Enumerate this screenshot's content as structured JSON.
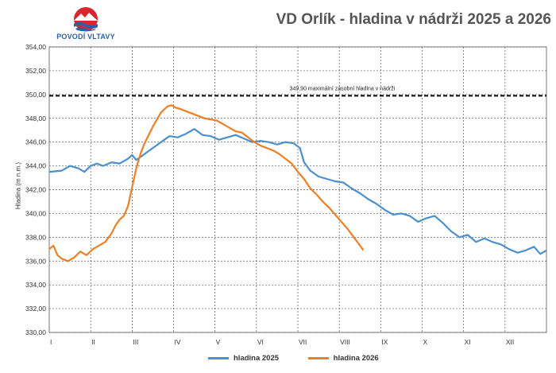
{
  "header": {
    "logo_text": "POVODÍ VLTAVY",
    "title": "VD Orlík - hladina v nádrži 2025 a 2026"
  },
  "chart_data": {
    "type": "line",
    "title": "VD Orlík - hladina v nádrži 2025 a 2026",
    "ylabel": "Hladina (m n.m.)",
    "xlabel": "",
    "ylim": [
      330,
      354
    ],
    "xlim": [
      0,
      12
    ],
    "y_ticks": [
      "330,00",
      "332,00",
      "334,00",
      "336,00",
      "338,00",
      "340,00",
      "342,00",
      "344,00",
      "346,00",
      "348,00",
      "350,00",
      "352,00",
      "354,00"
    ],
    "x_ticks": [
      "I",
      "II",
      "III",
      "IV",
      "V",
      "VI",
      "VII",
      "VIII",
      "IX",
      "X",
      "XI",
      "XII"
    ],
    "grid": true,
    "legend_position": "bottom",
    "reference_line": {
      "y": 349.9,
      "label": "349,90 maximální zásobní hladina v nádrži",
      "color": "#000000"
    },
    "series": [
      {
        "name": "hladina 2025",
        "color": "#4a90cf",
        "points": [
          [
            0,
            343.5
          ],
          [
            0.3,
            343.6
          ],
          [
            0.5,
            344.0
          ],
          [
            0.7,
            343.8
          ],
          [
            0.85,
            343.5
          ],
          [
            1.0,
            344.0
          ],
          [
            1.15,
            344.2
          ],
          [
            1.3,
            344.0
          ],
          [
            1.5,
            344.3
          ],
          [
            1.7,
            344.2
          ],
          [
            1.9,
            344.6
          ],
          [
            2.0,
            344.9
          ],
          [
            2.1,
            344.5
          ],
          [
            2.3,
            345.0
          ],
          [
            2.5,
            345.5
          ],
          [
            2.7,
            346.0
          ],
          [
            2.9,
            346.5
          ],
          [
            3.1,
            346.4
          ],
          [
            3.3,
            346.7
          ],
          [
            3.5,
            347.1
          ],
          [
            3.7,
            346.6
          ],
          [
            3.9,
            346.5
          ],
          [
            4.1,
            346.2
          ],
          [
            4.3,
            346.4
          ],
          [
            4.5,
            346.6
          ],
          [
            4.7,
            346.3
          ],
          [
            4.9,
            346.0
          ],
          [
            5.1,
            346.1
          ],
          [
            5.3,
            346.0
          ],
          [
            5.5,
            345.8
          ],
          [
            5.7,
            346.0
          ],
          [
            5.9,
            345.9
          ],
          [
            6.05,
            345.5
          ],
          [
            6.15,
            344.3
          ],
          [
            6.3,
            343.6
          ],
          [
            6.5,
            343.1
          ],
          [
            6.7,
            342.9
          ],
          [
            6.9,
            342.7
          ],
          [
            7.1,
            342.6
          ],
          [
            7.3,
            342.1
          ],
          [
            7.5,
            341.7
          ],
          [
            7.7,
            341.2
          ],
          [
            7.9,
            340.8
          ],
          [
            8.1,
            340.3
          ],
          [
            8.3,
            339.9
          ],
          [
            8.5,
            340.0
          ],
          [
            8.7,
            339.8
          ],
          [
            8.9,
            339.3
          ],
          [
            9.1,
            339.6
          ],
          [
            9.3,
            339.8
          ],
          [
            9.5,
            339.2
          ],
          [
            9.7,
            338.5
          ],
          [
            9.9,
            338.0
          ],
          [
            10.1,
            338.2
          ],
          [
            10.3,
            337.6
          ],
          [
            10.5,
            337.9
          ],
          [
            10.7,
            337.6
          ],
          [
            10.9,
            337.4
          ],
          [
            11.1,
            337.0
          ],
          [
            11.3,
            336.7
          ],
          [
            11.5,
            336.9
          ],
          [
            11.7,
            337.2
          ],
          [
            11.85,
            336.6
          ],
          [
            12.0,
            336.9
          ]
        ]
      },
      {
        "name": "hladina 2026",
        "color": "#f07f23",
        "points": [
          [
            0,
            337.0
          ],
          [
            0.1,
            337.3
          ],
          [
            0.2,
            336.5
          ],
          [
            0.3,
            336.2
          ],
          [
            0.45,
            336.0
          ],
          [
            0.6,
            336.3
          ],
          [
            0.75,
            336.8
          ],
          [
            0.9,
            336.5
          ],
          [
            1.05,
            337.0
          ],
          [
            1.2,
            337.3
          ],
          [
            1.35,
            337.6
          ],
          [
            1.5,
            338.3
          ],
          [
            1.6,
            339.0
          ],
          [
            1.7,
            339.5
          ],
          [
            1.8,
            339.8
          ],
          [
            1.9,
            340.6
          ],
          [
            2.0,
            342.2
          ],
          [
            2.1,
            343.8
          ],
          [
            2.2,
            345.0
          ],
          [
            2.3,
            345.9
          ],
          [
            2.4,
            346.6
          ],
          [
            2.5,
            347.3
          ],
          [
            2.6,
            347.9
          ],
          [
            2.7,
            348.5
          ],
          [
            2.85,
            349.0
          ],
          [
            2.95,
            349.1
          ],
          [
            3.05,
            348.9
          ],
          [
            3.15,
            348.8
          ],
          [
            3.3,
            348.6
          ],
          [
            3.45,
            348.4
          ],
          [
            3.6,
            348.2
          ],
          [
            3.75,
            348.0
          ],
          [
            3.9,
            347.9
          ],
          [
            4.05,
            347.8
          ],
          [
            4.2,
            347.5
          ],
          [
            4.35,
            347.2
          ],
          [
            4.5,
            346.9
          ],
          [
            4.65,
            346.8
          ],
          [
            4.8,
            346.4
          ],
          [
            4.95,
            346.0
          ],
          [
            5.1,
            345.7
          ],
          [
            5.25,
            345.5
          ],
          [
            5.4,
            345.3
          ],
          [
            5.55,
            345.0
          ],
          [
            5.7,
            344.6
          ],
          [
            5.85,
            344.2
          ],
          [
            6.0,
            343.5
          ],
          [
            6.15,
            342.9
          ],
          [
            6.3,
            342.1
          ],
          [
            6.45,
            341.6
          ],
          [
            6.6,
            341.0
          ],
          [
            6.75,
            340.5
          ],
          [
            6.9,
            339.9
          ],
          [
            7.05,
            339.3
          ],
          [
            7.2,
            338.7
          ],
          [
            7.35,
            338.0
          ],
          [
            7.5,
            337.3
          ],
          [
            7.58,
            336.9
          ]
        ]
      }
    ]
  }
}
